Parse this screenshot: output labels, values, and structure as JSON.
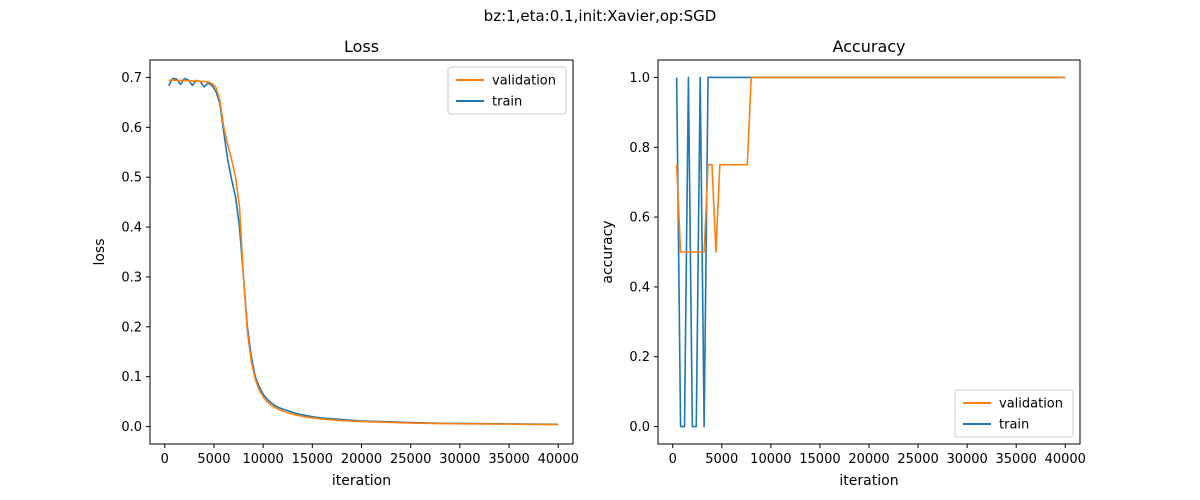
{
  "figure": {
    "suptitle": "bz:1,eta:0.1,init:Xavier,op:SGD"
  },
  "chart_data": [
    {
      "type": "line",
      "title": "Loss",
      "xlabel": "iteration",
      "ylabel": "loss",
      "xlim": [
        -1500,
        41500
      ],
      "ylim": [
        -0.035,
        0.735
      ],
      "xticks": [
        0,
        5000,
        10000,
        15000,
        20000,
        25000,
        30000,
        35000,
        40000
      ],
      "xtick_labels": [
        "0",
        "5000",
        "10000",
        "15000",
        "20000",
        "25000",
        "30000",
        "35000",
        "40000"
      ],
      "yticks": [
        0.0,
        0.1,
        0.2,
        0.3,
        0.4,
        0.5,
        0.6,
        0.7
      ],
      "ytick_labels": [
        "0.0",
        "0.1",
        "0.2",
        "0.3",
        "0.4",
        "0.5",
        "0.6",
        "0.7"
      ],
      "grid": false,
      "legend_position": "top-right",
      "legend": [
        "validation",
        "train"
      ],
      "series": [
        {
          "name": "validation",
          "color": "#ff7f0e",
          "x": [
            400,
            800,
            1200,
            1600,
            2000,
            2400,
            2800,
            3200,
            3600,
            4000,
            4400,
            4800,
            5200,
            5600,
            6000,
            6400,
            6800,
            7200,
            7600,
            8000,
            8400,
            8800,
            9200,
            9600,
            10000,
            10400,
            10800,
            11200,
            11600,
            12000,
            12800,
            13600,
            14400,
            15200,
            16000,
            18000,
            20000,
            22000,
            25000,
            28000,
            31000,
            34000,
            37000,
            40000
          ],
          "y": [
            0.694,
            0.695,
            0.694,
            0.694,
            0.694,
            0.693,
            0.693,
            0.693,
            0.692,
            0.692,
            0.691,
            0.688,
            0.68,
            0.655,
            0.6,
            0.565,
            0.535,
            0.5,
            0.44,
            0.3,
            0.19,
            0.13,
            0.095,
            0.073,
            0.06,
            0.05,
            0.043,
            0.038,
            0.034,
            0.031,
            0.026,
            0.022,
            0.019,
            0.017,
            0.015,
            0.012,
            0.01,
            0.009,
            0.007,
            0.006,
            0.0055,
            0.005,
            0.0045,
            0.004
          ]
        },
        {
          "name": "train",
          "color": "#1f77b4",
          "x": [
            400,
            800,
            1200,
            1600,
            2000,
            2400,
            2800,
            3200,
            3600,
            4000,
            4400,
            4800,
            5200,
            5600,
            6000,
            6400,
            6800,
            7200,
            7600,
            8000,
            8400,
            8800,
            9200,
            9600,
            10000,
            10400,
            10800,
            11200,
            11600,
            12000,
            12800,
            13600,
            14400,
            15200,
            16000,
            18000,
            20000,
            22000,
            25000,
            28000,
            31000,
            34000,
            37000,
            40000
          ],
          "y": [
            0.683,
            0.698,
            0.697,
            0.686,
            0.698,
            0.695,
            0.684,
            0.694,
            0.692,
            0.681,
            0.689,
            0.684,
            0.672,
            0.648,
            0.59,
            0.535,
            0.495,
            0.46,
            0.4,
            0.3,
            0.2,
            0.14,
            0.1,
            0.08,
            0.065,
            0.055,
            0.048,
            0.042,
            0.038,
            0.035,
            0.03,
            0.025,
            0.022,
            0.019,
            0.017,
            0.014,
            0.011,
            0.01,
            0.008,
            0.0065,
            0.006,
            0.0055,
            0.005,
            0.0045
          ]
        }
      ]
    },
    {
      "type": "line",
      "title": "Accuracy",
      "xlabel": "iteration",
      "ylabel": "accuracy",
      "xlim": [
        -1500,
        41500
      ],
      "ylim": [
        -0.05,
        1.05
      ],
      "xticks": [
        0,
        5000,
        10000,
        15000,
        20000,
        25000,
        30000,
        35000,
        40000
      ],
      "xtick_labels": [
        "0",
        "5000",
        "10000",
        "15000",
        "20000",
        "25000",
        "30000",
        "35000",
        "40000"
      ],
      "yticks": [
        0.0,
        0.2,
        0.4,
        0.6,
        0.8,
        1.0
      ],
      "ytick_labels": [
        "0.0",
        "0.2",
        "0.4",
        "0.6",
        "0.8",
        "1.0"
      ],
      "grid": false,
      "legend_position": "bottom-right",
      "legend": [
        "validation",
        "train"
      ],
      "series": [
        {
          "name": "validation",
          "color": "#ff7f0e",
          "x": [
            400,
            800,
            1200,
            1600,
            2000,
            2400,
            2800,
            3200,
            3600,
            4000,
            4400,
            4800,
            5200,
            5600,
            6000,
            6400,
            6800,
            7200,
            7600,
            8000,
            8400,
            12000,
            20000,
            30000,
            40000
          ],
          "y": [
            0.75,
            0.5,
            0.5,
            0.5,
            0.5,
            0.5,
            0.5,
            0.5,
            0.75,
            0.75,
            0.5,
            0.75,
            0.75,
            0.75,
            0.75,
            0.75,
            0.75,
            0.75,
            0.75,
            1.0,
            1.0,
            1.0,
            1.0,
            1.0,
            1.0
          ]
        },
        {
          "name": "train",
          "color": "#1f77b4",
          "x": [
            400,
            800,
            1200,
            1600,
            2000,
            2400,
            2800,
            3200,
            3600,
            4000,
            4400,
            8000,
            12000,
            20000,
            30000,
            40000
          ],
          "y": [
            1.0,
            0.0,
            0.0,
            1.0,
            0.0,
            0.0,
            1.0,
            0.0,
            1.0,
            1.0,
            1.0,
            1.0,
            1.0,
            1.0,
            1.0,
            1.0
          ]
        }
      ]
    }
  ]
}
